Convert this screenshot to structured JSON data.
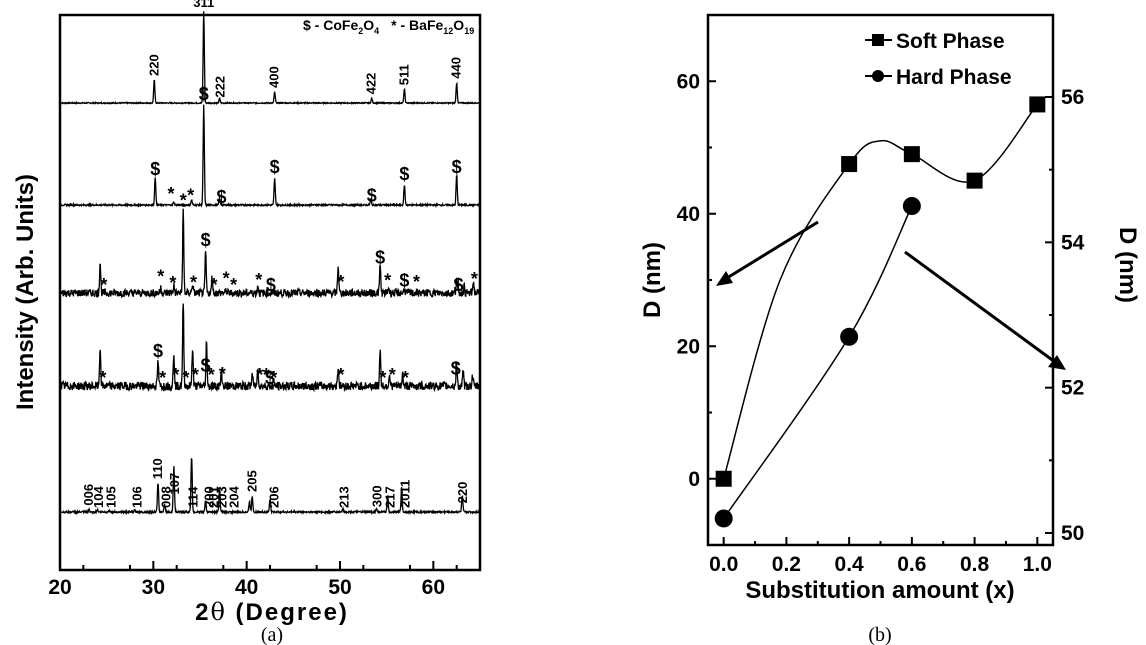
{
  "chart_data": [
    {
      "panel": "(a)",
      "type": "line",
      "xlabel_prefix": "2",
      "xlabel_theta": "θ",
      "xlabel_suffix": " (Degree)",
      "ylabel": "Intensity (Arb. Units)",
      "xlim": [
        20,
        65
      ],
      "xticks": [
        20,
        30,
        40,
        50,
        60
      ],
      "legend_key": {
        "a": "$ - CoFe",
        "a_sub1": "2",
        "a_mid": "O",
        "a_sub2": "4",
        "b": "* - BaFe",
        "b_sub1": "12",
        "b_mid": "O",
        "b_sub2": "19"
      },
      "series": [
        {
          "peaks": [
            [
              30.1,
              0.25
            ],
            [
              35.4,
              1.0
            ],
            [
              37.1,
              0.05
            ],
            [
              43.0,
              0.12
            ],
            [
              53.4,
              0.05
            ],
            [
              56.9,
              0.15
            ],
            [
              62.5,
              0.22
            ]
          ],
          "noise": 0.006,
          "labels": [
            {
              "x": 30.1,
              "t": "220",
              "rot": true
            },
            {
              "x": 35.4,
              "t": "311",
              "rot": false
            },
            {
              "x": 37.2,
              "t": "222",
              "rot": true
            },
            {
              "x": 43.0,
              "t": "400",
              "rot": true
            },
            {
              "x": 53.4,
              "t": "422",
              "rot": true
            },
            {
              "x": 56.9,
              "t": "511",
              "rot": true
            },
            {
              "x": 62.5,
              "t": "440",
              "rot": true
            }
          ]
        },
        {
          "peaks": [
            [
              30.2,
              0.28
            ],
            [
              32.2,
              0.03
            ],
            [
              34.1,
              0.05
            ],
            [
              35.4,
              1.0
            ],
            [
              37.1,
              0.07
            ],
            [
              43.0,
              0.27
            ],
            [
              53.3,
              0.06
            ],
            [
              56.9,
              0.2
            ],
            [
              62.5,
              0.3
            ]
          ],
          "noise": 0.008,
          "labels": [
            {
              "x": 30.2,
              "t": "$"
            },
            {
              "x": 31.9,
              "t": "*"
            },
            {
              "x": 34.0,
              "t": "*"
            },
            {
              "x": 35.4,
              "t": "$"
            },
            {
              "x": 37.3,
              "t": "$"
            },
            {
              "x": 43.0,
              "t": "$"
            },
            {
              "x": 53.4,
              "t": "$"
            },
            {
              "x": 56.9,
              "t": "$"
            },
            {
              "x": 62.5,
              "t": "$"
            }
          ]
        },
        {
          "peaks": [
            [
              24.3,
              0.28
            ],
            [
              30.8,
              0.05
            ],
            [
              32.2,
              0.07
            ],
            [
              33.2,
              0.74
            ],
            [
              34.2,
              0.08
            ],
            [
              35.6,
              0.38
            ],
            [
              36.3,
              0.14
            ],
            [
              37.8,
              0.03
            ],
            [
              41.2,
              0.07
            ],
            [
              49.8,
              0.25
            ],
            [
              54.3,
              0.25
            ],
            [
              55.2,
              0.05
            ],
            [
              56.9,
              0.04
            ],
            [
              62.5,
              0.14
            ],
            [
              63.3,
              0.06
            ],
            [
              64.3,
              0.1
            ]
          ],
          "noise": 0.035,
          "labels": [
            {
              "x": 24.7,
              "t": "*"
            },
            {
              "x": 30.8,
              "t": "*"
            },
            {
              "x": 32.1,
              "t": "*"
            },
            {
              "x": 33.2,
              "t": "*"
            },
            {
              "x": 34.3,
              "t": "*"
            },
            {
              "x": 35.6,
              "t": "$"
            },
            {
              "x": 36.5,
              "t": "*"
            },
            {
              "x": 37.8,
              "t": "*"
            },
            {
              "x": 38.6,
              "t": "*"
            },
            {
              "x": 41.3,
              "t": "*"
            },
            {
              "x": 42.6,
              "t": "$"
            },
            {
              "x": 50.1,
              "t": "*"
            },
            {
              "x": 54.3,
              "t": "$"
            },
            {
              "x": 55.1,
              "t": "*"
            },
            {
              "x": 56.9,
              "t": "$"
            },
            {
              "x": 58.2,
              "t": "*"
            },
            {
              "x": 62.7,
              "t": "$"
            },
            {
              "x": 64.4,
              "t": "*"
            }
          ]
        },
        {
          "peaks": [
            [
              24.3,
              0.32
            ],
            [
              30.5,
              0.2
            ],
            [
              32.2,
              0.28
            ],
            [
              33.2,
              0.7
            ],
            [
              34.2,
              0.32
            ],
            [
              35.7,
              0.36
            ],
            [
              37.3,
              0.12
            ],
            [
              40.6,
              0.1
            ],
            [
              41.2,
              0.15
            ],
            [
              49.8,
              0.16
            ],
            [
              54.3,
              0.3
            ],
            [
              55.3,
              0.1
            ],
            [
              56.7,
              0.1
            ],
            [
              62.5,
              0.18
            ],
            [
              63.2,
              0.12
            ],
            [
              64.2,
              0.08
            ]
          ],
          "noise": 0.035,
          "labels": [
            {
              "x": 24.6,
              "t": "*"
            },
            {
              "x": 30.5,
              "t": "$"
            },
            {
              "x": 31.0,
              "t": "*"
            },
            {
              "x": 32.4,
              "t": "*"
            },
            {
              "x": 33.5,
              "t": "*"
            },
            {
              "x": 34.5,
              "t": "*"
            },
            {
              "x": 35.6,
              "t": "$"
            },
            {
              "x": 36.2,
              "t": "*"
            },
            {
              "x": 37.4,
              "t": "*"
            },
            {
              "x": 41.4,
              "t": "*"
            },
            {
              "x": 42.5,
              "t": "$"
            },
            {
              "x": 42.1,
              "t": "*"
            },
            {
              "x": 42.9,
              "t": "*"
            },
            {
              "x": 50.1,
              "t": "*"
            },
            {
              "x": 54.6,
              "t": "*"
            },
            {
              "x": 55.6,
              "t": "*"
            },
            {
              "x": 57.0,
              "t": "*"
            },
            {
              "x": 62.4,
              "t": "$"
            }
          ]
        },
        {
          "peaks": [
            [
              23.1,
              0.03
            ],
            [
              24.0,
              0.03
            ],
            [
              25.3,
              0.02
            ],
            [
              28.0,
              0.02
            ],
            [
              30.5,
              0.36
            ],
            [
              31.2,
              0.1
            ],
            [
              32.2,
              0.58
            ],
            [
              34.1,
              0.7
            ],
            [
              35.6,
              0.14
            ],
            [
              37.1,
              0.28
            ],
            [
              40.3,
              0.13
            ],
            [
              40.6,
              0.2
            ],
            [
              42.5,
              0.16
            ],
            [
              50.3,
              0.04
            ],
            [
              53.9,
              0.04
            ],
            [
              55.1,
              0.2
            ],
            [
              56.6,
              0.3
            ],
            [
              63.1,
              0.2
            ]
          ],
          "noise": 0.012,
          "labels": [
            {
              "x": 23.1,
              "t": "006",
              "rot": true
            },
            {
              "x": 24.2,
              "t": "104",
              "rot": true
            },
            {
              "x": 25.5,
              "t": "105",
              "rot": true
            },
            {
              "x": 28.3,
              "t": "106",
              "rot": true
            },
            {
              "x": 30.5,
              "t": "110",
              "rot": true
            },
            {
              "x": 31.4,
              "t": "008",
              "rot": true
            },
            {
              "x": 32.3,
              "t": "107",
              "rot": true
            },
            {
              "x": 34.3,
              "t": "114",
              "rot": true
            },
            {
              "x": 36.0,
              "t": "200",
              "rot": true
            },
            {
              "x": 36.5,
              "t": "201",
              "rot": true
            },
            {
              "x": 37.4,
              "t": "203",
              "rot": true
            },
            {
              "x": 38.7,
              "t": "204",
              "rot": true
            },
            {
              "x": 40.6,
              "t": "205",
              "rot": true
            },
            {
              "x": 43.0,
              "t": "206",
              "rot": true
            },
            {
              "x": 50.5,
              "t": "213",
              "rot": true
            },
            {
              "x": 54.0,
              "t": "300",
              "rot": true
            },
            {
              "x": 55.4,
              "t": "217",
              "rot": true
            },
            {
              "x": 57.0,
              "t": "2011",
              "rot": true
            },
            {
              "x": 63.2,
              "t": "220",
              "rot": true
            }
          ]
        }
      ]
    },
    {
      "panel": "(b)",
      "type": "line",
      "xlabel": "Substitution amount (x)",
      "ylabel_left": "D (nm)",
      "ylabel_right": "D (nm)",
      "xlim": [
        -0.05,
        1.05
      ],
      "ylim_left": [
        -10,
        70
      ],
      "ylim_right": [
        50,
        57
      ],
      "xticks": [
        "0.0",
        "0.2",
        "0.4",
        "0.6",
        "0.8",
        "1.0"
      ],
      "yticks_left": [
        "0",
        "20",
        "40",
        "60"
      ],
      "yticks_right": [
        "50",
        "52",
        "54",
        "56"
      ],
      "series": [
        {
          "name": "Soft Phase",
          "marker": "square",
          "axis": "left",
          "x": [
            0.0,
            0.4,
            0.6,
            0.8,
            1.0
          ],
          "y": [
            0,
            47.5,
            49,
            45,
            56.5
          ]
        },
        {
          "name": "Hard Phase",
          "marker": "circle",
          "axis": "right",
          "x": [
            0.0,
            0.4,
            0.6
          ],
          "y": [
            50.2,
            52.7,
            54.5
          ]
        }
      ]
    }
  ]
}
